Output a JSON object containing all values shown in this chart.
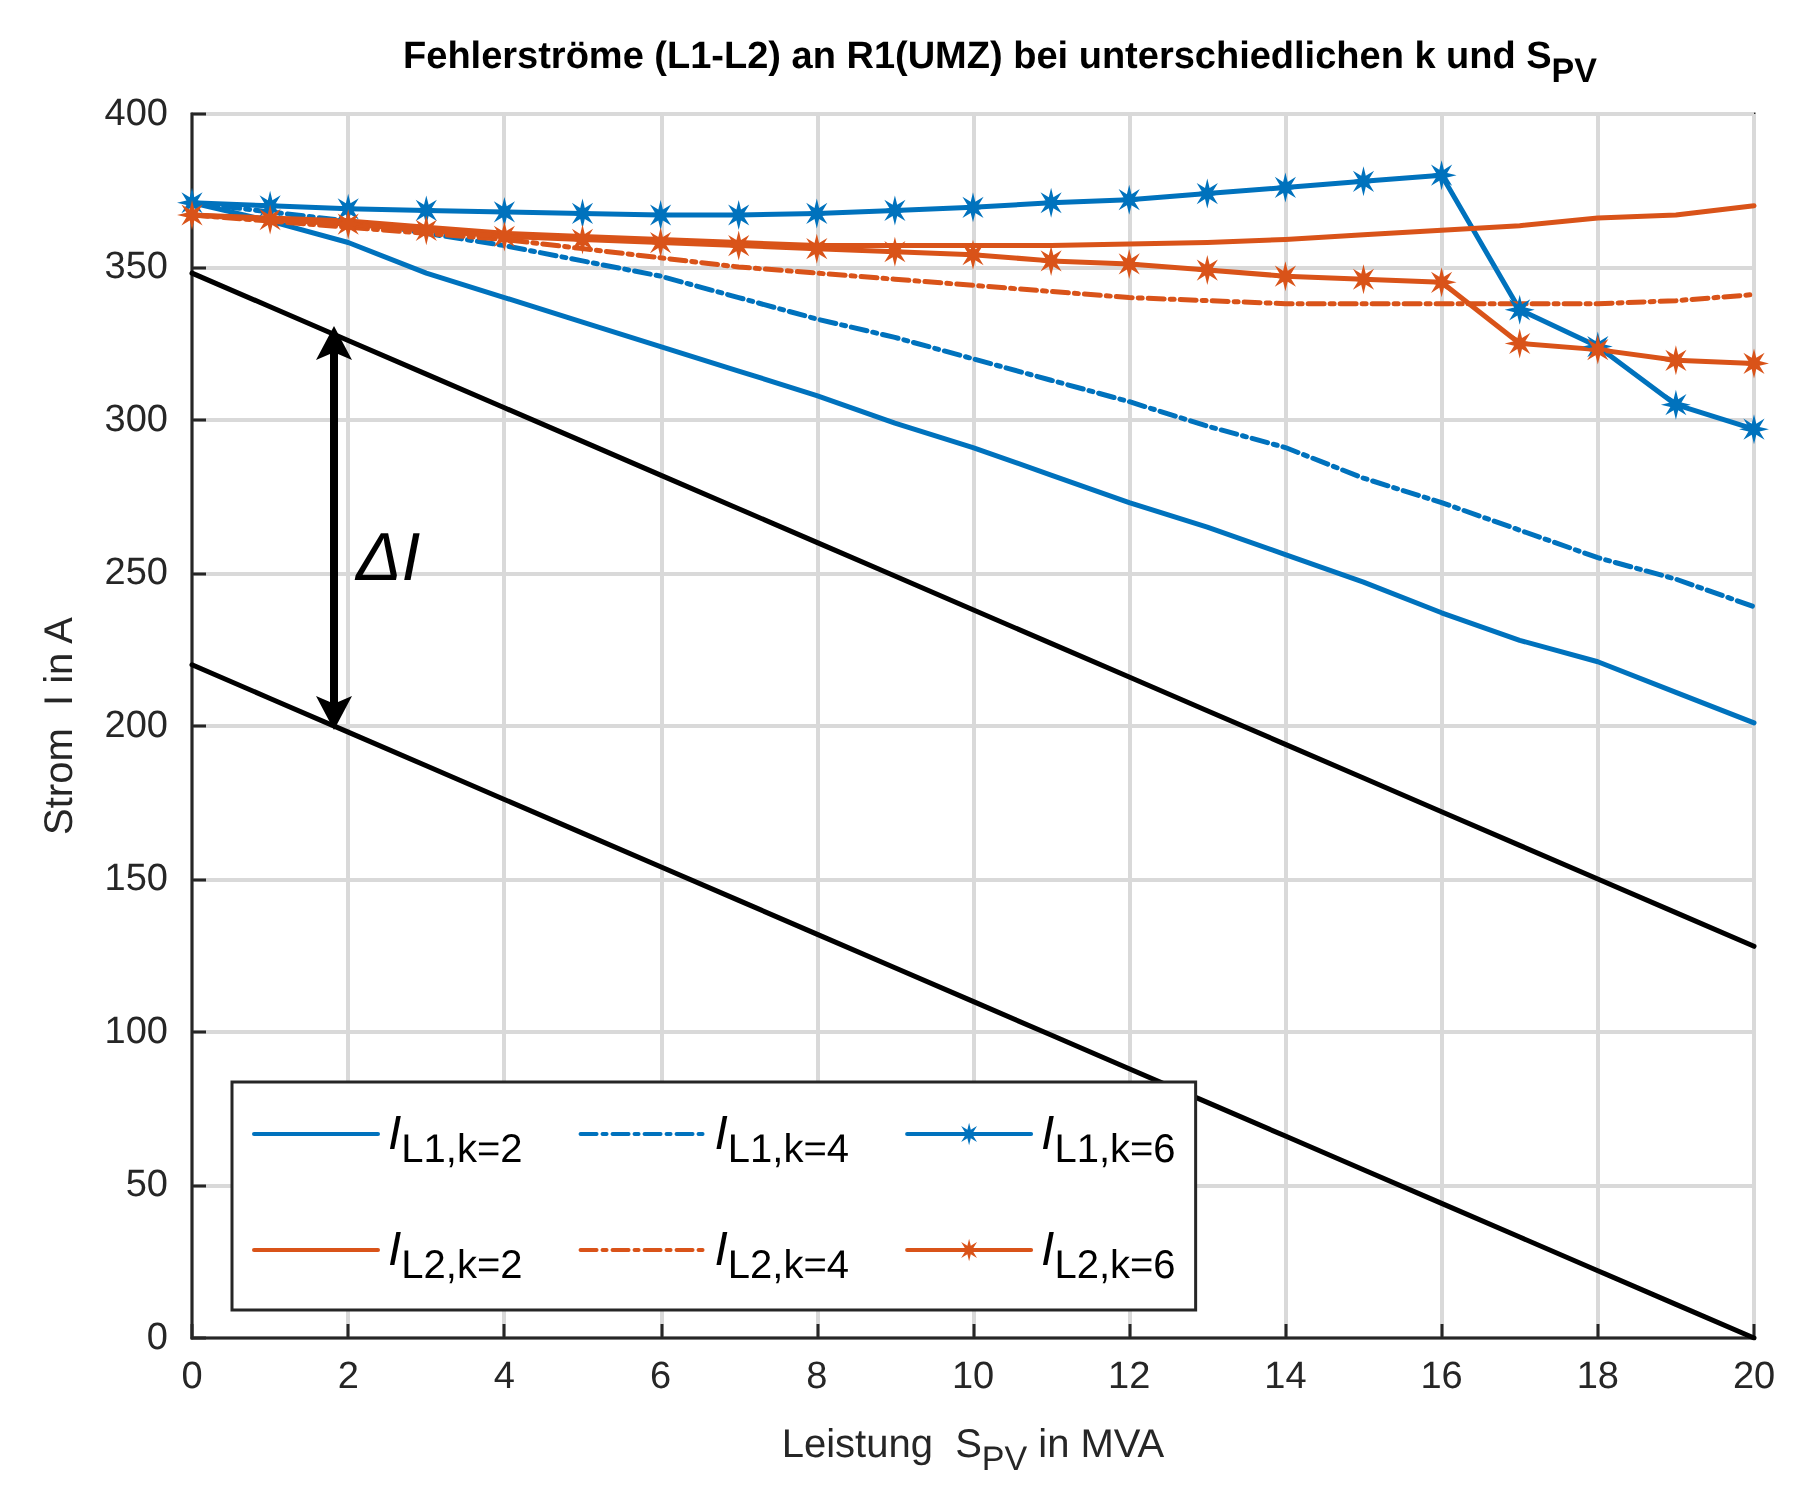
{
  "chart_data": {
    "type": "line",
    "title": "Fehlerströme (L1-L2) an R1(UMZ) bei unterschiedlichen k und S$_{PV}$",
    "xlabel": "Leistung  S$_{PV}$ in MVA",
    "ylabel": "Strom  I in A",
    "x": [
      0,
      1,
      2,
      3,
      4,
      5,
      6,
      7,
      8,
      9,
      10,
      11,
      12,
      13,
      14,
      15,
      16,
      17,
      18,
      19,
      20
    ],
    "series": [
      {
        "name": "I$_{L1,k=2}$",
        "color": "#0072bd",
        "line_style": "solid",
        "marker": "none",
        "values": [
          371,
          365,
          358,
          348,
          340,
          332,
          324,
          316,
          308,
          299,
          291,
          282,
          273,
          265,
          256,
          247,
          237,
          228,
          221,
          211,
          201
        ]
      },
      {
        "name": "I$_{L1,k=4}$",
        "color": "#0072bd",
        "line_style": "dashed",
        "marker": "none",
        "values": [
          371,
          368,
          365,
          361,
          357,
          352,
          347,
          340,
          333,
          327,
          320,
          313,
          306,
          298,
          291,
          281,
          273,
          264,
          255,
          248,
          239
        ]
      },
      {
        "name": "I$_{L1,k=6}$",
        "color": "#0072bd",
        "line_style": "solid",
        "marker": "star",
        "values": [
          371,
          370,
          369,
          368.5,
          368,
          367.5,
          367,
          367,
          367.5,
          368.5,
          369.5,
          371,
          372,
          374,
          376,
          378,
          380,
          336,
          324,
          305,
          297
        ]
      },
      {
        "name": "I$_{L2,k=2}$",
        "color": "#d95319",
        "line_style": "solid",
        "marker": "none",
        "values": [
          367,
          366,
          365,
          363,
          361,
          360,
          359,
          358,
          357,
          357,
          357,
          357,
          357.5,
          358,
          359,
          360.5,
          362,
          363.5,
          366,
          367,
          370
        ]
      },
      {
        "name": "I$_{L2,k=4}$",
        "color": "#d95319",
        "line_style": "dashed",
        "marker": "none",
        "values": [
          367,
          365,
          363,
          361,
          359,
          356,
          353,
          350,
          348,
          346,
          344,
          342,
          340,
          339,
          338,
          338,
          338,
          338,
          338,
          339,
          341
        ]
      },
      {
        "name": "I$_{L2,k=6}$",
        "color": "#d95319",
        "line_style": "solid",
        "marker": "star",
        "values": [
          367,
          365.5,
          364,
          362,
          360,
          359,
          358,
          357,
          356,
          355,
          354,
          352,
          351,
          349,
          347,
          346,
          345,
          325,
          323,
          319.5,
          318.5
        ]
      },
      {
        "color": "#000000",
        "line_style": "solid",
        "marker": "none",
        "values": [
          348,
          337,
          326,
          315,
          304,
          293,
          282,
          271,
          260,
          249,
          238,
          227,
          216,
          205,
          194,
          183,
          172,
          161,
          150,
          139,
          128
        ]
      },
      {
        "color": "#000000",
        "line_style": "solid",
        "marker": "none",
        "values": [
          220,
          209,
          198,
          187,
          176,
          165,
          154,
          143,
          132,
          121,
          110,
          99,
          88,
          77,
          66,
          55,
          44,
          33,
          22,
          11,
          0
        ]
      }
    ],
    "annotations": [
      "ΔI"
    ],
    "xlim": [
      0,
      20
    ],
    "xticks": [
      0,
      2,
      4,
      6,
      8,
      10,
      12,
      14,
      16,
      18,
      20
    ],
    "ylim": [
      0,
      400
    ],
    "yticks": [
      0,
      50,
      100,
      150,
      200,
      250,
      300,
      350,
      400
    ],
    "grid": true,
    "legend": "bottom left"
  }
}
